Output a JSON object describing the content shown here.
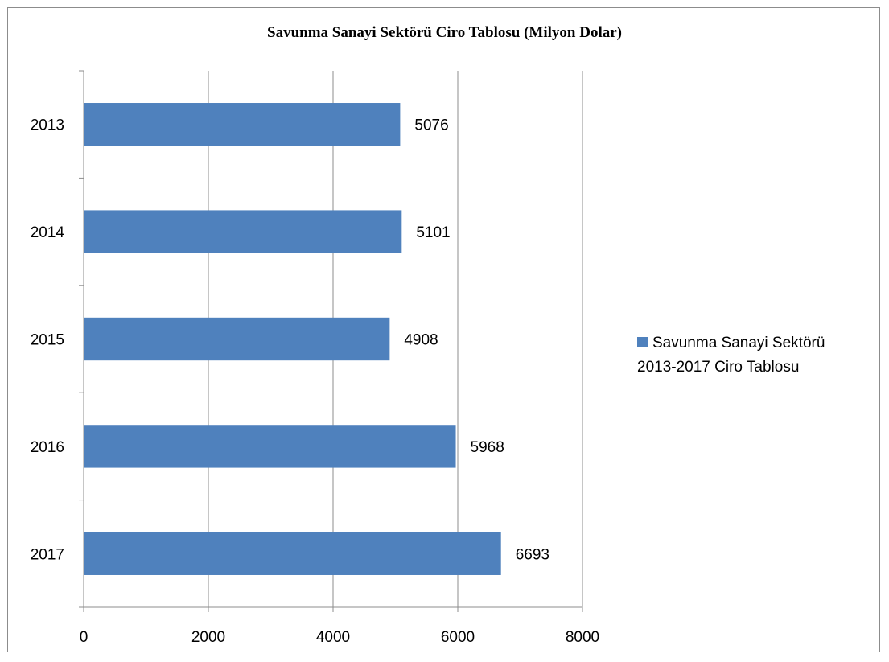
{
  "chart_data": {
    "type": "bar",
    "orientation": "horizontal",
    "title": "Savunma Sanayi Sektörü Ciro Tablosu (Milyon Dolar)",
    "xlabel": "",
    "ylabel": "",
    "categories": [
      "2013",
      "2014",
      "2015",
      "2016",
      "2017"
    ],
    "series": [
      {
        "name": "Savunma Sanayi Sektörü\n2013-2017 Ciro Tablosu",
        "values": [
          5076,
          5101,
          4908,
          5968,
          6693
        ],
        "color": "#4f81bd"
      }
    ],
    "xlim": [
      0,
      8000
    ],
    "x_ticks": [
      0,
      2000,
      4000,
      6000,
      8000
    ],
    "grid": true,
    "legend_position": "right",
    "data_labels": true
  }
}
